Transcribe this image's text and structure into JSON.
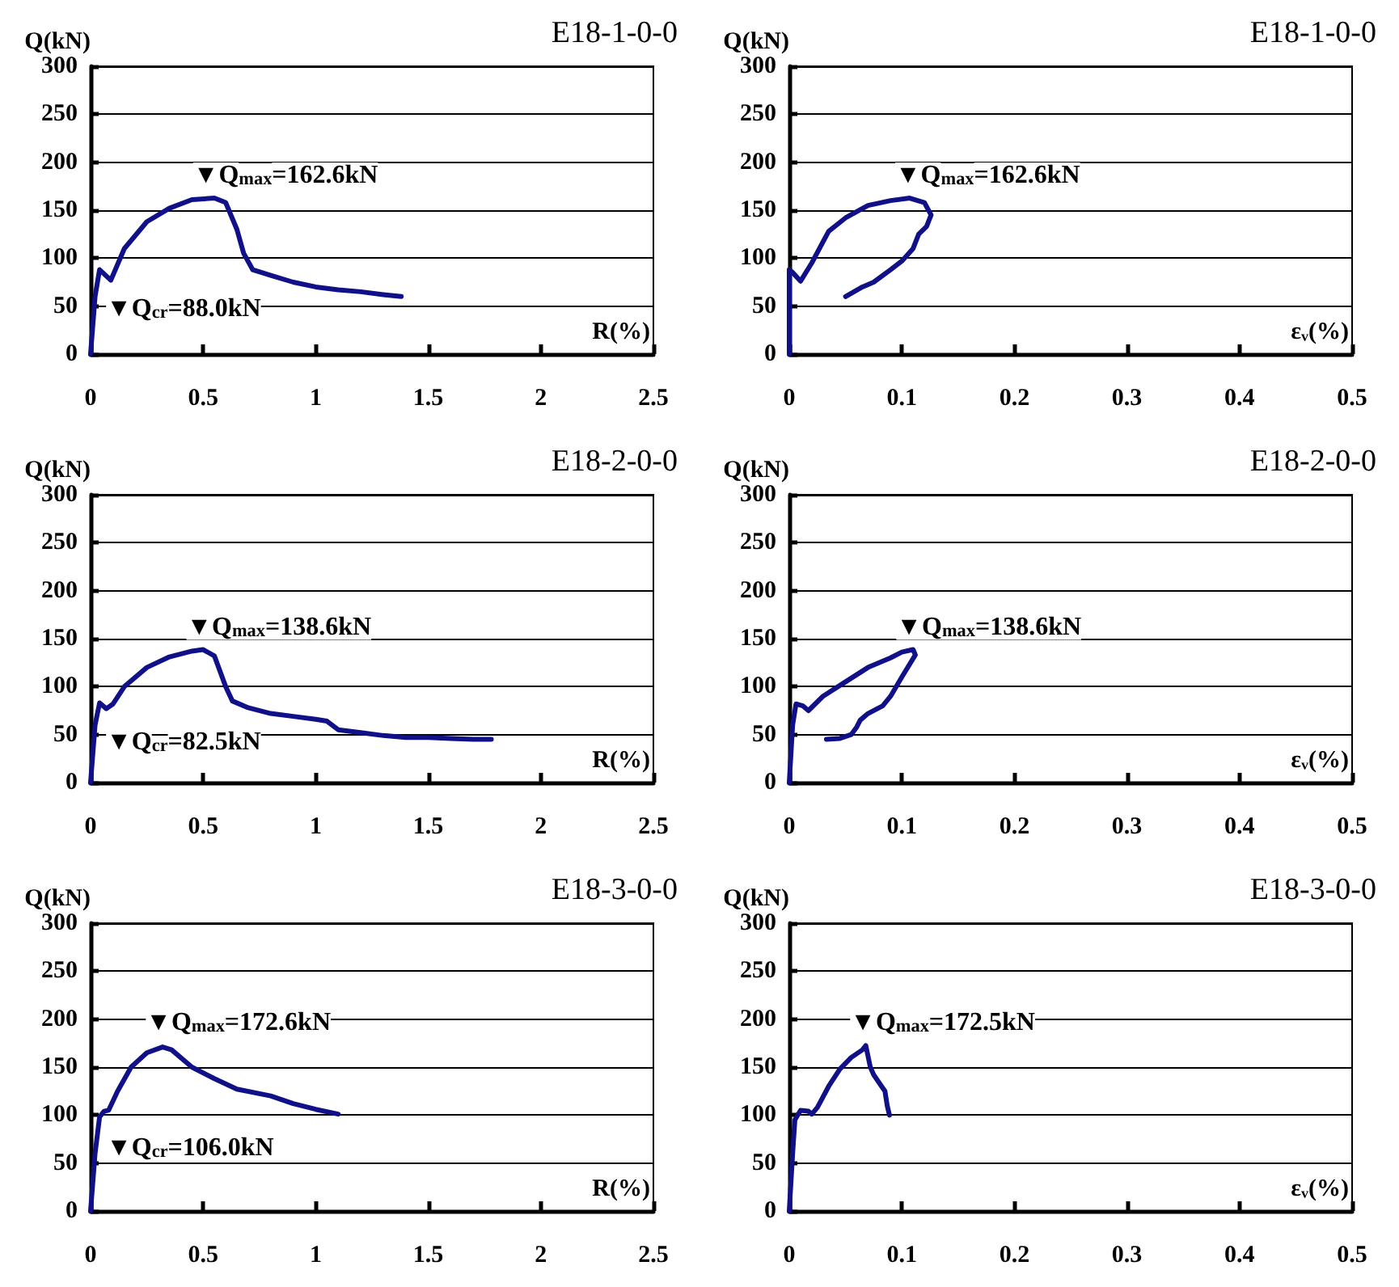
{
  "chart_data": [
    {
      "type": "line",
      "title": "E18-1-0-0",
      "xlabel": "R(%)",
      "ylabel": "Q(kN)",
      "xlim": [
        0,
        2.5
      ],
      "xticks": [
        0,
        0.5,
        1,
        1.5,
        2,
        2.5
      ],
      "ylim": [
        0,
        300
      ],
      "yticks": [
        0,
        50,
        100,
        150,
        200,
        250,
        300
      ],
      "grid": "y",
      "series": [
        {
          "color": "#101088",
          "x": [
            0,
            0.02,
            0.04,
            0.09,
            0.15,
            0.25,
            0.35,
            0.45,
            0.55,
            0.6,
            0.65,
            0.68,
            0.72,
            0.8,
            0.9,
            1.0,
            1.1,
            1.2,
            1.3,
            1.38
          ],
          "values": [
            0,
            60,
            88,
            77,
            110,
            138,
            152,
            161,
            162.6,
            158,
            130,
            105,
            88,
            82,
            75,
            70,
            67,
            65,
            62,
            60
          ]
        }
      ],
      "annotations": [
        {
          "text": "▼Q$_{max}$=162.6kN",
          "x": 0.52,
          "y": 162.6
        },
        {
          "text": "▼Q$_{cr}$=88.0kN",
          "x": 0.04,
          "y": 88
        }
      ]
    },
    {
      "type": "line",
      "title": "E18-1-0-0",
      "xlabel": "εᵥ(%)",
      "ylabel": "Q(kN)",
      "xlim": [
        0,
        0.5
      ],
      "xticks": [
        0,
        0.1,
        0.2,
        0.3,
        0.4,
        0.5
      ],
      "ylim": [
        0,
        300
      ],
      "yticks": [
        0,
        50,
        100,
        150,
        200,
        250,
        300
      ],
      "grid": "y",
      "series": [
        {
          "color": "#101088",
          "x": [
            0,
            0,
            0.003,
            0.01,
            0.02,
            0.035,
            0.05,
            0.07,
            0.09,
            0.107,
            0.12,
            0.126,
            0.122,
            0.115,
            0.11,
            0.1,
            0.09,
            0.075,
            0.065,
            0.05
          ],
          "values": [
            0,
            88,
            85,
            76,
            95,
            128,
            142,
            155,
            160,
            162.6,
            158,
            145,
            133,
            125,
            110,
            97,
            88,
            75,
            70,
            60
          ]
        }
      ],
      "annotations": [
        {
          "text": "▼Q$_{max}$=162.6kN",
          "x": 0.107,
          "y": 162.6
        }
      ]
    },
    {
      "type": "line",
      "title": "E18-2-0-0",
      "xlabel": "R(%)",
      "ylabel": "Q(kN)",
      "xlim": [
        0,
        2.5
      ],
      "xticks": [
        0,
        0.5,
        1,
        1.5,
        2,
        2.5
      ],
      "ylim": [
        0,
        300
      ],
      "yticks": [
        0,
        50,
        100,
        150,
        200,
        250,
        300
      ],
      "grid": "y",
      "series": [
        {
          "color": "#101088",
          "x": [
            0,
            0.02,
            0.04,
            0.07,
            0.1,
            0.15,
            0.25,
            0.35,
            0.45,
            0.5,
            0.55,
            0.6,
            0.63,
            0.7,
            0.8,
            0.9,
            1.0,
            1.05,
            1.1,
            1.2,
            1.3,
            1.4,
            1.5,
            1.6,
            1.7,
            1.78
          ],
          "values": [
            0,
            60,
            83,
            77,
            82,
            100,
            120,
            131,
            137,
            138.6,
            132,
            100,
            85,
            78,
            72,
            69,
            66,
            64,
            55,
            52,
            49,
            47,
            47,
            46,
            45,
            45
          ]
        }
      ],
      "annotations": [
        {
          "text": "▼Q$_{max}$=138.6kN",
          "x": 0.49,
          "y": 138.6
        },
        {
          "text": "▼Q$_{cr}$=82.5kN",
          "x": 0.04,
          "y": 82.5
        }
      ]
    },
    {
      "type": "line",
      "title": "E18-2-0-0",
      "xlabel": "εᵥ(%)",
      "ylabel": "Q(kN)",
      "xlim": [
        0,
        0.5
      ],
      "xticks": [
        0,
        0.1,
        0.2,
        0.3,
        0.4,
        0.5
      ],
      "ylim": [
        0,
        300
      ],
      "yticks": [
        0,
        50,
        100,
        150,
        200,
        250,
        300
      ],
      "grid": "y",
      "series": [
        {
          "color": "#101088",
          "x": [
            0,
            0.003,
            0.006,
            0.012,
            0.017,
            0.03,
            0.05,
            0.07,
            0.09,
            0.1,
            0.11,
            0.112,
            0.1,
            0.09,
            0.083,
            0.07,
            0.063,
            0.06,
            0.055,
            0.045,
            0.033
          ],
          "values": [
            0,
            60,
            82,
            80,
            75,
            90,
            105,
            120,
            130,
            136,
            138.6,
            133,
            110,
            90,
            80,
            72,
            65,
            58,
            50,
            46,
            45
          ]
        }
      ],
      "annotations": [
        {
          "text": "▼Q$_{max}$=138.6kN",
          "x": 0.108,
          "y": 138.6
        }
      ]
    },
    {
      "type": "line",
      "title": "E18-3-0-0",
      "xlabel": "R(%)",
      "ylabel": "Q(kN)",
      "xlim": [
        0,
        2.5
      ],
      "xticks": [
        0,
        0.5,
        1,
        1.5,
        2,
        2.5
      ],
      "ylim": [
        0,
        300
      ],
      "yticks": [
        0,
        50,
        100,
        150,
        200,
        250,
        300
      ],
      "grid": "y",
      "series": [
        {
          "color": "#101088",
          "x": [
            0,
            0.02,
            0.04,
            0.06,
            0.08,
            0.12,
            0.18,
            0.25,
            0.32,
            0.36,
            0.45,
            0.55,
            0.65,
            0.8,
            0.9,
            1.0,
            1.1
          ],
          "values": [
            0,
            60,
            98,
            104,
            105,
            125,
            150,
            165,
            171,
            168,
            150,
            138,
            127,
            120,
            112,
            106,
            101
          ]
        }
      ],
      "annotations": [
        {
          "text": "▼Q$_{max}$=172.6kN",
          "x": 0.31,
          "y": 172.6
        },
        {
          "text": "▼Q$_{cr}$=106.0kN",
          "x": 0.04,
          "y": 106
        }
      ]
    },
    {
      "type": "line",
      "title": "E18-3-0-0",
      "xlabel": "εᵥ(%)",
      "ylabel": "Q(kN)",
      "xlim": [
        0,
        0.5
      ],
      "xticks": [
        0,
        0.1,
        0.2,
        0.3,
        0.4,
        0.5
      ],
      "ylim": [
        0,
        300
      ],
      "yticks": [
        0,
        50,
        100,
        150,
        200,
        250,
        300
      ],
      "grid": "y",
      "series": [
        {
          "color": "#101088",
          "x": [
            0,
            0.003,
            0.005,
            0.01,
            0.017,
            0.02,
            0.025,
            0.035,
            0.045,
            0.055,
            0.065,
            0.068,
            0.072,
            0.075,
            0.082,
            0.085,
            0.087,
            0.089
          ],
          "values": [
            0,
            60,
            95,
            105,
            104,
            101,
            108,
            130,
            148,
            160,
            168,
            172.5,
            150,
            142,
            130,
            125,
            110,
            100
          ]
        }
      ],
      "annotations": [
        {
          "text": "▼Q$_{max}$=172.5kN",
          "x": 0.067,
          "y": 172.5
        }
      ]
    }
  ]
}
